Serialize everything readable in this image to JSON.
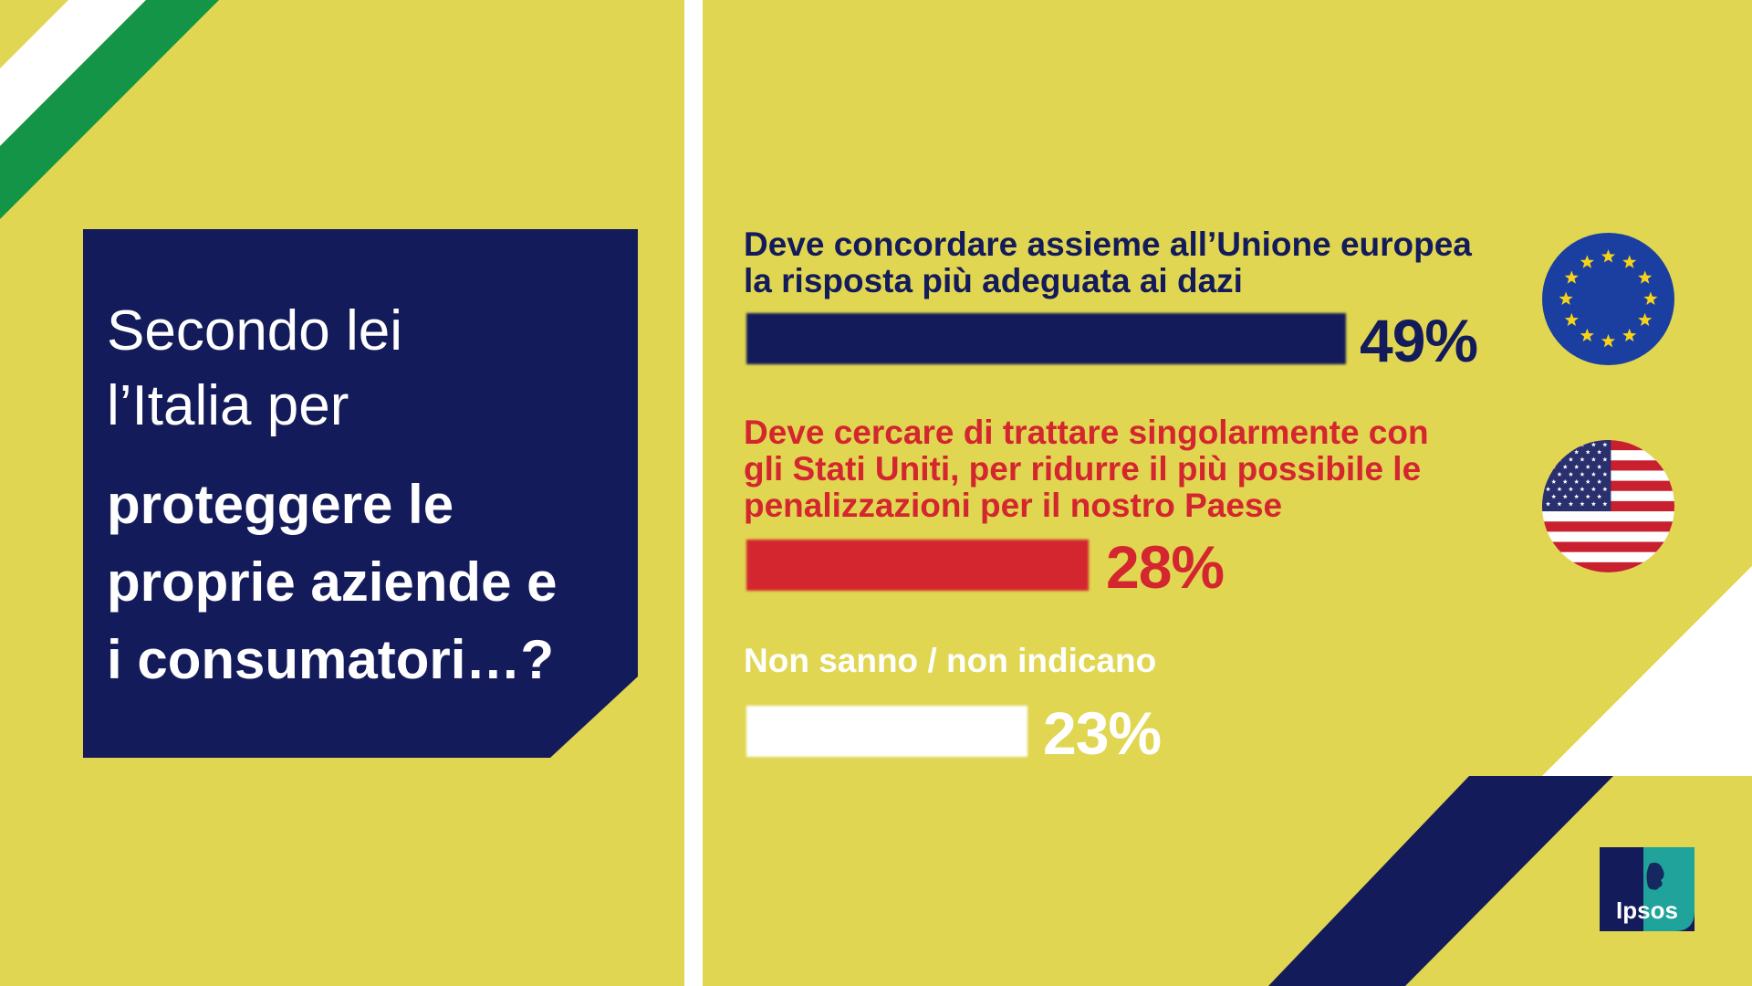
{
  "colors": {
    "background": "#e0d651",
    "navy": "#141b5a",
    "red": "#d3262f",
    "white": "#ffffff",
    "flag_green": "#139447",
    "ipsos_teal": "#1fa39a"
  },
  "question": {
    "line_light": "Secondo lei\nl’Italia per",
    "line_bold": "proteggere le\nproprie aziende e\ni consumatori…?"
  },
  "icons": {
    "eu": "eu-flag-icon",
    "us": "us-flag-icon",
    "italy": "italian-flag-icon"
  },
  "logo": {
    "text": "Ipsos"
  },
  "chart_data": {
    "type": "bar",
    "orientation": "horizontal",
    "categories": [
      "Deve concordare assieme all’Unione europea\nla risposta più adeguata ai dazi",
      "Deve cercare di trattare singolarmente con\ngli Stati Uniti, per ridurre il più possibile le\npenalizzazioni per il nostro Paese",
      "Non sanno / non indicano"
    ],
    "values": [
      49,
      28,
      23
    ],
    "value_labels": [
      "49%",
      "28%",
      "23%"
    ],
    "colors": [
      "#141b5a",
      "#d3262f",
      "#ffffff"
    ],
    "xlim": [
      0,
      100
    ],
    "grid": false
  }
}
